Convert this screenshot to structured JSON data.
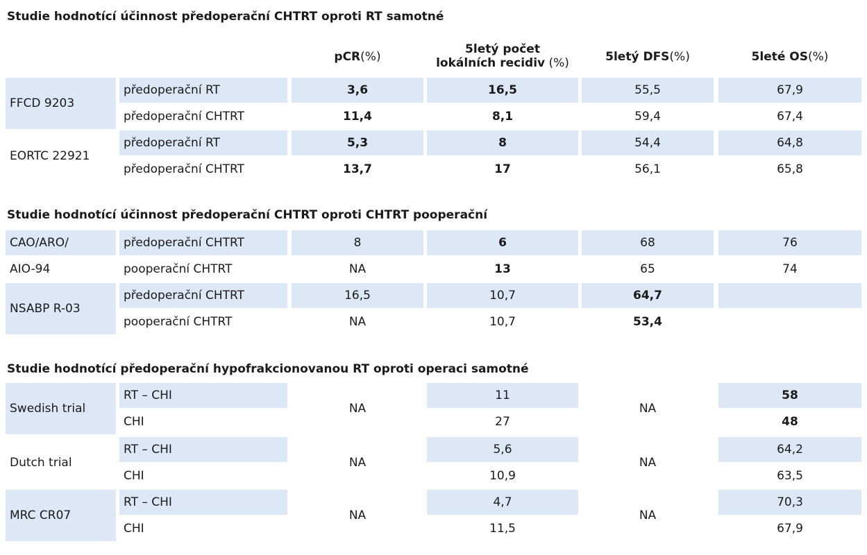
{
  "sections": [
    {
      "title": "Studie hodnotící účinnost předoperační CHTRT oproti RT samotné",
      "header": {
        "pcr": {
          "strong": "pCR",
          "light": " (%)"
        },
        "local": {
          "line1": "5letý počet",
          "line2_strong": "lokálních recidiv",
          "line2_light": " (%)"
        },
        "dfs": {
          "strong": "5letý DFS",
          "light": " (%)"
        },
        "os": {
          "strong": "5leté OS",
          "light": " (%)"
        }
      },
      "studies": [
        {
          "name": "FFCD 9203",
          "rows": [
            {
              "arm": "předoperační RT",
              "pcr": "3,6",
              "local": "16,5",
              "dfs": "55,5",
              "os": "67,9"
            },
            {
              "arm": "předoperační CHTRT",
              "pcr": "11,4",
              "local": "8,1",
              "dfs": "59,4",
              "os": "67,4"
            }
          ]
        },
        {
          "name": "EORTC 22921",
          "rows": [
            {
              "arm": "předoperační RT",
              "pcr": "5,3",
              "local": "8",
              "dfs": "54,4",
              "os": "64,8"
            },
            {
              "arm": "předoperační CHTRT",
              "pcr": "13,7",
              "local": "17",
              "dfs": "56,1",
              "os": "65,8"
            }
          ]
        }
      ]
    },
    {
      "title": "Studie hodnotící účinnost předoperační CHTRT oproti CHTRT pooperační",
      "studies": [
        {
          "name_row1": "CAO/ARO/",
          "name_row2": "AIO-94",
          "rows": [
            {
              "arm": "předoperační CHTRT",
              "pcr": "8",
              "local": "6",
              "dfs": "68",
              "os": "76"
            },
            {
              "arm": "pooperační CHTRT",
              "pcr": "NA",
              "local": "13",
              "dfs": "65",
              "os": "74"
            }
          ]
        },
        {
          "name": "NSABP R-03",
          "rows": [
            {
              "arm": "předoperační CHTRT",
              "pcr": "16,5",
              "local": "10,7",
              "dfs": "64,7",
              "os": ""
            },
            {
              "arm": "pooperační CHTRT",
              "pcr": "NA",
              "local": "10,7",
              "dfs": "53,4",
              "os": ""
            }
          ]
        }
      ]
    },
    {
      "title": "Studie hodnotící předoperační hypofrakcionovanou RT oproti operaci samotné",
      "studies": [
        {
          "name": "Swedish trial",
          "pcr": "NA",
          "dfs": "NA",
          "rows": [
            {
              "arm": "RT – CHI",
              "local": "11",
              "os": "58"
            },
            {
              "arm": "CHI",
              "local": "27",
              "os": "48"
            }
          ]
        },
        {
          "name": "Dutch trial",
          "pcr": "NA",
          "dfs": "NA",
          "rows": [
            {
              "arm": "RT – CHI",
              "local": "5,6",
              "os": "64,2"
            },
            {
              "arm": "CHI",
              "local": "10,9",
              "os": "63,5"
            }
          ]
        },
        {
          "name": "MRC CR07",
          "pcr": "NA",
          "dfs": "NA",
          "rows": [
            {
              "arm": "RT – CHI",
              "local": "4,7",
              "os": "70,3"
            },
            {
              "arm": "CHI",
              "local": "11,5",
              "os": "67,9"
            }
          ]
        }
      ]
    }
  ]
}
